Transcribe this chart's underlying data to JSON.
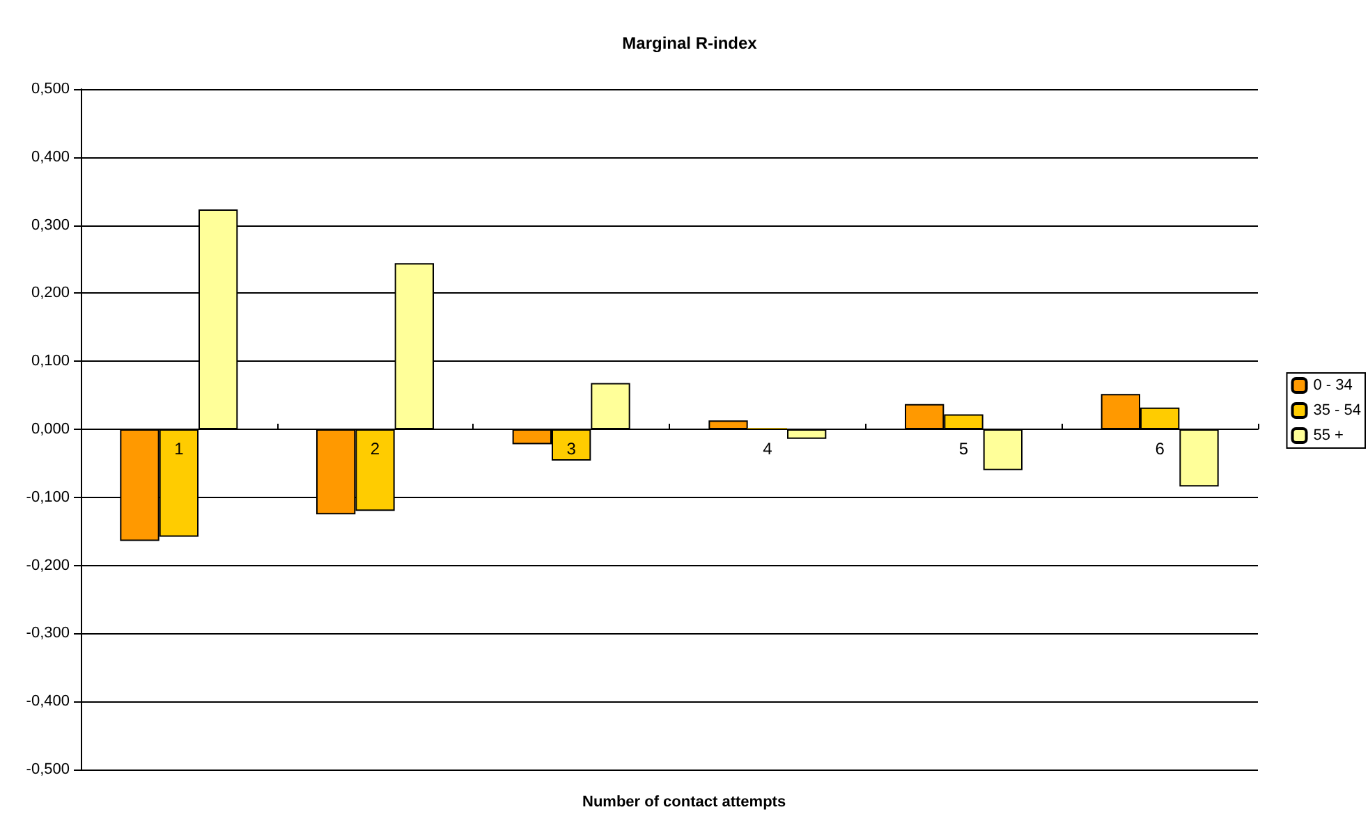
{
  "chart_data": {
    "type": "bar",
    "title": "Marginal R-index",
    "xlabel": "Number of contact attempts",
    "categories": [
      "1",
      "2",
      "3",
      "4",
      "5",
      "6"
    ],
    "series": [
      {
        "name": "0 - 34",
        "color": "#ff9900",
        "values": [
          -0.164,
          -0.125,
          -0.022,
          0.013,
          0.037,
          0.052
        ]
      },
      {
        "name": "35 - 54",
        "color": "#ffcc00",
        "values": [
          -0.158,
          -0.12,
          -0.046,
          0.002,
          0.022,
          0.032
        ]
      },
      {
        "name": "55 +",
        "color": "#ffff99",
        "values": [
          0.323,
          0.244,
          0.068,
          -0.014,
          -0.06,
          -0.084
        ]
      }
    ],
    "ylim": [
      -0.5,
      0.5
    ],
    "yticks": [
      {
        "value": -0.5,
        "label": "-0,500"
      },
      {
        "value": -0.4,
        "label": "-0,400"
      },
      {
        "value": -0.3,
        "label": "-0,300"
      },
      {
        "value": -0.2,
        "label": "-0,200"
      },
      {
        "value": -0.1,
        "label": "-0,100"
      },
      {
        "value": 0,
        "label": "0,000"
      },
      {
        "value": 0.1,
        "label": "0,100"
      },
      {
        "value": 0.2,
        "label": "0,200"
      },
      {
        "value": 0.3,
        "label": "0,300"
      },
      {
        "value": 0.4,
        "label": "0,400"
      },
      {
        "value": 0.5,
        "label": "0,500"
      }
    ],
    "grid": "y",
    "legend": "right"
  }
}
